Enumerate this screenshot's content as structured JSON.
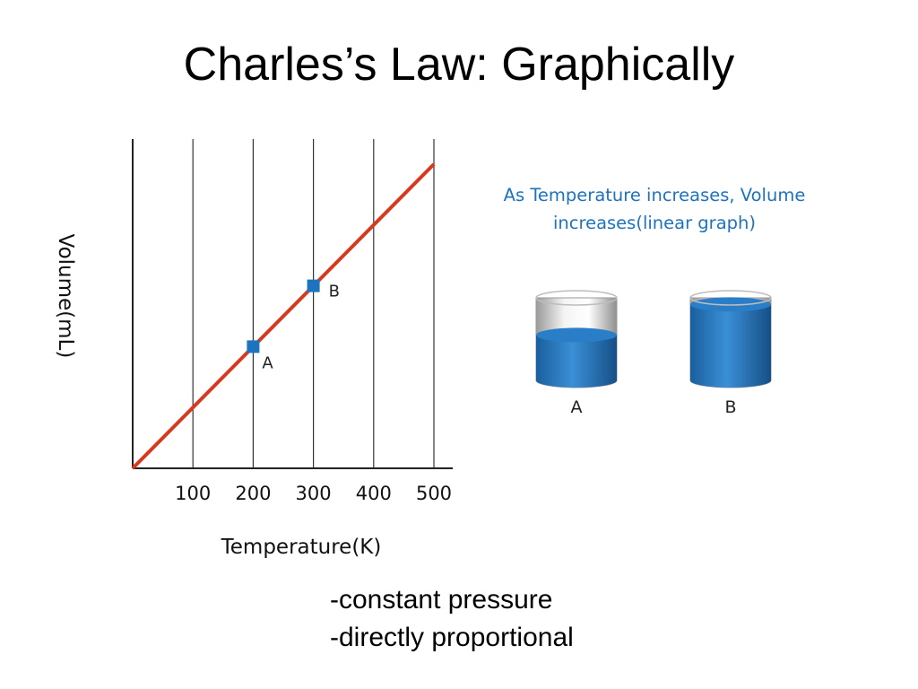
{
  "slide": {
    "title": "Charles’s Law: Graphically",
    "caption_line1": "As Temperature increases, Volume",
    "caption_line2": "increases(linear graph)",
    "notes": [
      "-constant pressure",
      "-directly proportional"
    ]
  },
  "chart_data": {
    "type": "line",
    "xlabel": "Temperature(K)",
    "ylabel": "Volume(mL)",
    "xticks": [
      100,
      200,
      300,
      400,
      500
    ],
    "xlim": [
      0,
      530
    ],
    "grid": "vertical",
    "series": [
      {
        "x": [
          0,
          500
        ],
        "y": [
          0,
          500
        ],
        "color": "#d9381e"
      }
    ],
    "points": [
      {
        "label": "A",
        "x": 200,
        "y": 200
      },
      {
        "label": "B",
        "x": 300,
        "y": 300
      }
    ],
    "line_color": "#d9381e",
    "marker_color": "#1e73be"
  },
  "cylinders": [
    {
      "label": "A",
      "fill_level": 0.55
    },
    {
      "label": "B",
      "fill_level": 0.92
    }
  ]
}
